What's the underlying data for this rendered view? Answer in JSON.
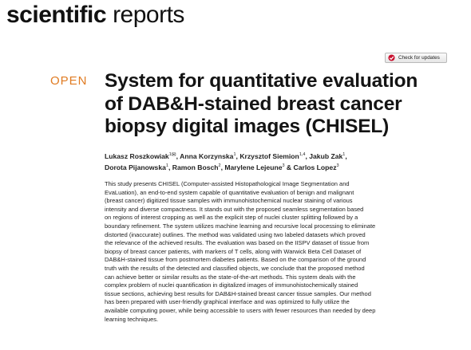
{
  "header": {
    "journal_part1": "scientific",
    "journal_part2": "reports"
  },
  "check_updates": {
    "label": "Check for updates",
    "icon": "check-for-updates-icon"
  },
  "badge": {
    "label": "OPEN",
    "color": "#e07b22"
  },
  "title_lines": [
    "System for quantitative evaluation",
    "of DAB&H-stained breast cancer",
    "biopsy digital images (CHISEL)"
  ],
  "authors_rows": [
    [
      {
        "name": "Lukasz Roszkowiak",
        "sup": "1",
        "sep": ", "
      },
      {
        "name": "Anna Korzynska",
        "sup": "1",
        "sep": ", "
      },
      {
        "name": "Krzysztof Siemion",
        "sup": "1,4",
        "sep": ", "
      },
      {
        "name": "Jakub Zak",
        "sup": "1",
        "sep": ","
      }
    ],
    [
      {
        "name": "Dorota Pijanowska",
        "sup": "1",
        "sep": ", "
      },
      {
        "name": "Ramon Bosch",
        "sup": "2",
        "sep": ", "
      },
      {
        "name": "Marylene Lejeune",
        "sup": "3",
        "sep": " & "
      },
      {
        "name": "Carlos Lopez",
        "sup": "3",
        "sep": ""
      }
    ]
  ],
  "abstract_lines": [
    "This study presents CHISEL (Computer-assisted Histopathological Image Segmentation and",
    "EvaLuation), an end-to-end system capable of quantitative evaluation of benign and malignant",
    "(breast cancer) digitized tissue samples with immunohistochemical nuclear staining of various",
    "intensity and diverse compactness. It stands out with the proposed seamless segmentation based",
    "on regions of interest cropping as well as the explicit step of nuclei cluster splitting followed by a",
    "boundary refinement. The system utilizes machine learning and recursive local processing to eliminate",
    "distorted (inaccurate) outlines. The method was validated using two labeled datasets which proved",
    "the relevance of the achieved results. The evaluation was based on the IISPV dataset of tissue from",
    "biopsy of breast cancer patients, with markers of T cells, along with Warwick Beta Cell Dataset of",
    "DAB&H-stained tissue from postmortem diabetes patients. Based on the comparison of the ground",
    "truth with the results of the detected and classified objects, we conclude that the proposed method",
    "can achieve better or similar results as the state-of-the-art methods. This system deals with the",
    "complex problem of nuclei quantification in digitalized images of immunohistochemically stained",
    "tissue sections, achieving best results for DAB&H-stained breast cancer tissue samples. Our method",
    "has been prepared with user-friendly graphical interface and was optimized to fully utilize the",
    "available computing power, while being accessible to users with fewer resources than needed by deep",
    "learning techniques."
  ]
}
